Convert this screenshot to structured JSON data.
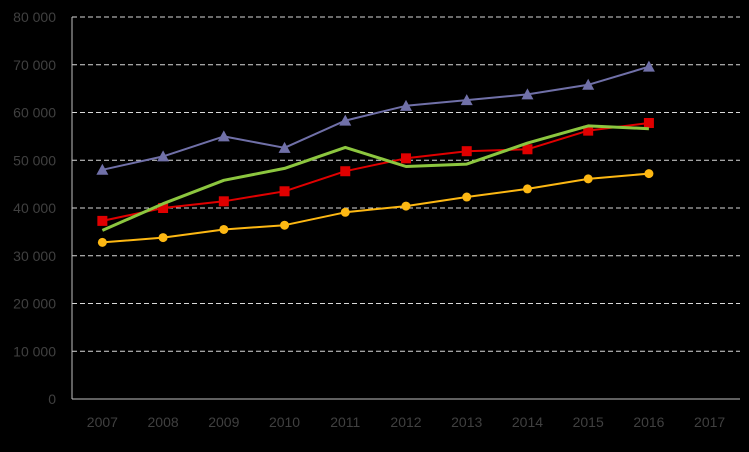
{
  "chart_data": {
    "type": "line",
    "title": "",
    "xlabel": "",
    "ylabel": "",
    "categories": [
      "2007",
      "2008",
      "2009",
      "2010",
      "2011",
      "2012",
      "2013",
      "2014",
      "2015",
      "2016",
      "2017"
    ],
    "y_tick_labels": [
      "0",
      "10 000",
      "20 000",
      "30 000",
      "40 000",
      "50 000",
      "60 000",
      "70 000",
      "80 000"
    ],
    "y_ticks": [
      0,
      10000,
      20000,
      30000,
      40000,
      50000,
      60000,
      70000,
      80000
    ],
    "ylim": [
      0,
      80000
    ],
    "grid": "horizontal dashed",
    "legend": "none",
    "series": [
      {
        "color": "#7070A8",
        "marker": "triangle",
        "values": [
          48000,
          50800,
          55000,
          52600,
          58300,
          61400,
          62600,
          63800,
          65800,
          69600,
          null
        ]
      },
      {
        "color": "#E00000",
        "marker": "square",
        "values": [
          37300,
          40000,
          41400,
          43500,
          47700,
          50400,
          51900,
          52300,
          56200,
          57800,
          null
        ]
      },
      {
        "color": "#8CC63F",
        "marker": "none",
        "values": [
          35300,
          40900,
          45800,
          48300,
          52700,
          48700,
          49200,
          53600,
          57200,
          56600,
          null
        ]
      },
      {
        "color": "#FDB813",
        "marker": "circle",
        "values": [
          32800,
          33800,
          35500,
          36400,
          39100,
          40400,
          42300,
          44000,
          46100,
          47200,
          null
        ]
      }
    ]
  }
}
